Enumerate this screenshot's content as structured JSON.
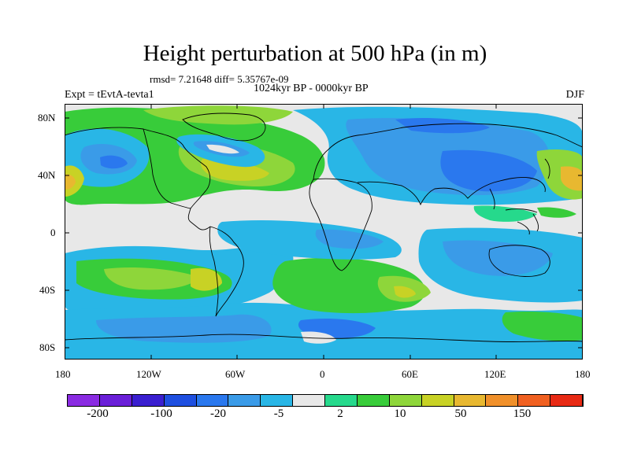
{
  "title": "Height perturbation at 500 hPa (in m)",
  "stats": "rmsd= 7.21648 diff= 5.35767e-09",
  "period": "1024kyr BP - 0000kyr BP",
  "experiment": "Expt = tEvtA-tevta1",
  "season": "DJF",
  "lat_labels": [
    "80N",
    "40N",
    "0",
    "40S",
    "80S"
  ],
  "lon_labels": [
    "180",
    "120W",
    "60W",
    "0",
    "60E",
    "120E",
    "180"
  ],
  "colorbar": {
    "colors": [
      "#8a2be2",
      "#6a1fd8",
      "#3a1fd0",
      "#1e4fe0",
      "#2a78ee",
      "#3a9be8",
      "#29b6e6",
      "#e8e8e8",
      "#26d98c",
      "#38cc3a",
      "#8ed63a",
      "#c8d225",
      "#e8b830",
      "#f0902a",
      "#f06020",
      "#e82a14"
    ],
    "labels": [
      "-200",
      "-100",
      "-20",
      "-5",
      "2",
      "10",
      "50",
      "150"
    ]
  }
}
